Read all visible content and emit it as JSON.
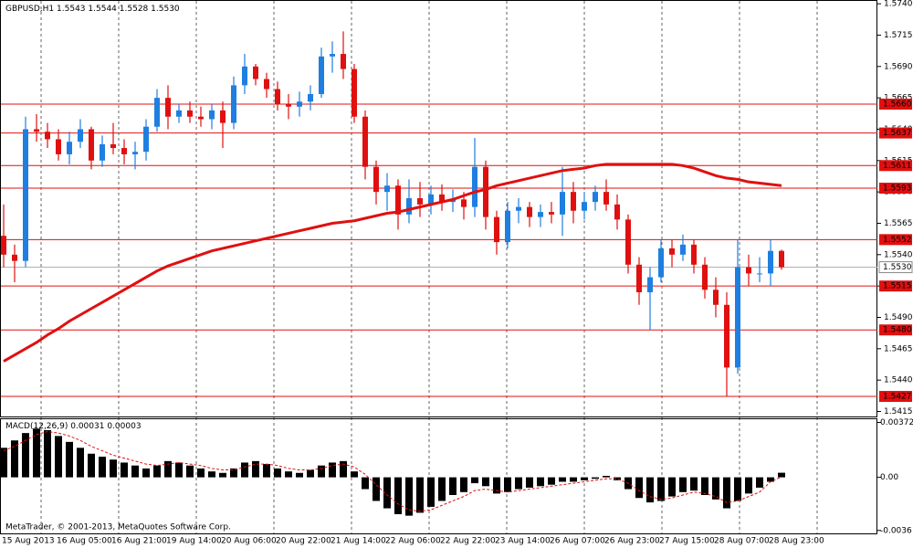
{
  "chart_data": [
    {
      "type": "candlestick",
      "title": "GBPUSD,H1",
      "ohlc_labels": [
        "1.5543",
        "1.5544",
        "1.5528",
        "1.5530"
      ],
      "categories": [
        "15 Aug 2013",
        null,
        null,
        null,
        null,
        "16 Aug 05:00",
        null,
        null,
        null,
        null,
        "16 Aug 21:00",
        null,
        null,
        null,
        null,
        "19 Aug 14:00",
        null,
        null,
        null,
        null,
        "20 Aug 06:00",
        null,
        null,
        null,
        null,
        "20 Aug 22:00",
        null,
        null,
        null,
        null,
        "21 Aug 14:00",
        null,
        null,
        null,
        null,
        "22 Aug 06:00",
        null,
        null,
        null,
        null,
        "22 Aug 22:00",
        null,
        null,
        null,
        null,
        "23 Aug 14:00",
        null,
        null,
        null,
        null,
        "26 Aug 07:00",
        null,
        null,
        null,
        null,
        "26 Aug 23:00",
        null,
        null,
        null,
        null,
        "27 Aug 15:00",
        null,
        null,
        null,
        null,
        "28 Aug 07:00",
        null,
        null,
        null,
        null,
        "28 Aug 23:00",
        null
      ],
      "open": [
        1.5555,
        1.554,
        1.5535,
        1.564,
        1.5638,
        1.5632,
        1.562,
        1.563,
        1.564,
        1.5615,
        1.5628,
        1.5625,
        1.562,
        1.5622,
        1.5642,
        1.5665,
        1.565,
        1.5655,
        1.565,
        1.5648,
        1.5655,
        1.5645,
        1.5675,
        1.569,
        1.568,
        1.5672,
        1.566,
        1.5658,
        1.5662,
        1.5668,
        1.5698,
        1.57,
        1.5688,
        1.565,
        1.561,
        1.559,
        1.5595,
        1.5572,
        1.5585,
        1.558,
        1.5588,
        1.5582,
        1.5584,
        1.5578,
        1.561,
        1.557,
        1.555,
        1.5575,
        1.5578,
        1.557,
        1.5574,
        1.5572,
        1.559,
        1.5575,
        1.5582,
        1.559,
        1.558,
        1.5568,
        1.5532,
        1.551,
        1.5522,
        1.5545,
        1.554,
        1.5548,
        1.5532,
        1.5512,
        1.55,
        1.545,
        1.553,
        1.5525,
        1.5525,
        1.5543
      ],
      "high": [
        1.558,
        1.5548,
        1.565,
        1.5652,
        1.5645,
        1.564,
        1.5638,
        1.5648,
        1.5642,
        1.5635,
        1.5645,
        1.5632,
        1.563,
        1.5648,
        1.5672,
        1.5675,
        1.566,
        1.5662,
        1.5658,
        1.566,
        1.5662,
        1.5682,
        1.57,
        1.5692,
        1.5685,
        1.5678,
        1.5668,
        1.567,
        1.5675,
        1.5705,
        1.571,
        1.5718,
        1.5692,
        1.5655,
        1.5615,
        1.5605,
        1.56,
        1.56,
        1.5598,
        1.5595,
        1.5596,
        1.5592,
        1.559,
        1.5633,
        1.5615,
        1.5575,
        1.5582,
        1.5585,
        1.5582,
        1.558,
        1.5582,
        1.561,
        1.5598,
        1.559,
        1.5595,
        1.56,
        1.5588,
        1.5572,
        1.5538,
        1.553,
        1.5552,
        1.5552,
        1.5556,
        1.5552,
        1.5538,
        1.5522,
        1.551,
        1.5552,
        1.554,
        1.5538,
        1.5552,
        1.5544
      ],
      "low": [
        1.553,
        1.5518,
        1.553,
        1.563,
        1.5625,
        1.5615,
        1.5612,
        1.5625,
        1.5608,
        1.561,
        1.562,
        1.5612,
        1.5608,
        1.5615,
        1.5638,
        1.564,
        1.5645,
        1.5645,
        1.5642,
        1.564,
        1.5625,
        1.564,
        1.5668,
        1.5675,
        1.5665,
        1.5655,
        1.5648,
        1.565,
        1.5655,
        1.5665,
        1.5685,
        1.568,
        1.5645,
        1.56,
        1.558,
        1.5575,
        1.556,
        1.5565,
        1.557,
        1.5572,
        1.5575,
        1.5574,
        1.5568,
        1.557,
        1.556,
        1.554,
        1.5545,
        1.5565,
        1.5562,
        1.5562,
        1.5565,
        1.5555,
        1.5565,
        1.5568,
        1.5575,
        1.5575,
        1.556,
        1.5525,
        1.55,
        1.548,
        1.5518,
        1.553,
        1.5535,
        1.5525,
        1.5505,
        1.549,
        1.5427,
        1.5445,
        1.5515,
        1.5518,
        1.5515,
        1.5528
      ],
      "close": [
        1.554,
        1.5535,
        1.564,
        1.5638,
        1.5632,
        1.562,
        1.563,
        1.564,
        1.5615,
        1.5628,
        1.5625,
        1.562,
        1.5622,
        1.5642,
        1.5665,
        1.565,
        1.5655,
        1.565,
        1.5648,
        1.5655,
        1.5645,
        1.5675,
        1.569,
        1.568,
        1.5672,
        1.566,
        1.5658,
        1.5662,
        1.5668,
        1.5698,
        1.57,
        1.5688,
        1.565,
        1.561,
        1.559,
        1.5595,
        1.5572,
        1.5585,
        1.558,
        1.5588,
        1.5582,
        1.5584,
        1.5578,
        1.561,
        1.557,
        1.555,
        1.5575,
        1.5578,
        1.557,
        1.5574,
        1.5572,
        1.559,
        1.5575,
        1.5582,
        1.559,
        1.558,
        1.5568,
        1.5532,
        1.551,
        1.5522,
        1.5545,
        1.554,
        1.5548,
        1.5532,
        1.5512,
        1.55,
        1.545,
        1.553,
        1.5525,
        1.5525,
        1.5543,
        1.553
      ],
      "up_color": "#1e7fe0",
      "down_color": "#e01010",
      "ma": {
        "color": "#e01010",
        "values": [
          1.5455,
          1.546,
          1.5465,
          1.547,
          1.5476,
          1.5481,
          1.5487,
          1.5492,
          1.5497,
          1.5502,
          1.5507,
          1.5512,
          1.5517,
          1.5522,
          1.5527,
          1.5531,
          1.5534,
          1.5537,
          1.554,
          1.5543,
          1.5545,
          1.5547,
          1.5549,
          1.5551,
          1.5553,
          1.5555,
          1.5557,
          1.5559,
          1.5561,
          1.5563,
          1.5565,
          1.5566,
          1.5567,
          1.5569,
          1.5571,
          1.5573,
          1.5574,
          1.5576,
          1.5578,
          1.558,
          1.5582,
          1.5584,
          1.5587,
          1.559,
          1.5592,
          1.5595,
          1.5597,
          1.5599,
          1.5601,
          1.5603,
          1.5605,
          1.5607,
          1.5608,
          1.5609,
          1.5611,
          1.5612,
          1.5612,
          1.5612,
          1.5612,
          1.5612,
          1.5612,
          1.5612,
          1.5611,
          1.5609,
          1.5606,
          1.5603,
          1.5601,
          1.56,
          1.5598,
          1.5597,
          1.5596,
          1.5595
        ]
      },
      "levels": [
        {
          "value": 1.566,
          "label": "1.5660"
        },
        {
          "value": 1.5637,
          "label": "1.5637"
        },
        {
          "value": 1.5611,
          "label": "1.5611"
        },
        {
          "value": 1.5593,
          "label": "1.5593"
        },
        {
          "value": 1.5552,
          "label": "1.5552"
        },
        {
          "value": 1.5515,
          "label": "1.5515"
        },
        {
          "value": 1.548,
          "label": "1.5480"
        },
        {
          "value": 1.5427,
          "label": "1.5427"
        }
      ],
      "level_color": "#e01010",
      "current_price": {
        "value": 1.553,
        "label": "1.5530"
      },
      "ylim": [
        1.5411,
        1.5743
      ],
      "yticks": [
        {
          "value": 1.574,
          "label": "1.5740"
        },
        {
          "value": 1.5715,
          "label": "1.5715"
        },
        {
          "value": 1.569,
          "label": "1.5690"
        },
        {
          "value": 1.5665,
          "label": "1.5665"
        },
        {
          "value": 1.564,
          "label": "1.5640"
        },
        {
          "value": 1.5615,
          "label": "1.5615"
        },
        {
          "value": 1.559,
          "label": "1.5590"
        },
        {
          "value": 1.5565,
          "label": "1.5565"
        },
        {
          "value": 1.554,
          "label": "1.5540"
        },
        {
          "value": 1.5515,
          "label": "1.5515"
        },
        {
          "value": 1.549,
          "label": "1.5490"
        },
        {
          "value": 1.5465,
          "label": "1.5465"
        },
        {
          "value": 1.544,
          "label": "1.5440"
        },
        {
          "value": 1.5415,
          "label": "1.5415"
        }
      ]
    },
    {
      "type": "macd",
      "title": "MACD(12,26,9)",
      "histogram": {
        "color": "#000000",
        "values": [
          0.002,
          0.0025,
          0.003,
          0.0033,
          0.0032,
          0.0028,
          0.0024,
          0.002,
          0.0016,
          0.0014,
          0.0012,
          0.001,
          0.0008,
          0.0006,
          0.0008,
          0.0011,
          0.001,
          0.0008,
          0.0006,
          0.0004,
          0.0003,
          0.0006,
          0.001,
          0.0011,
          0.0009,
          0.0006,
          0.0004,
          0.0003,
          0.0005,
          0.0008,
          0.001,
          0.0011,
          0.0004,
          -0.0008,
          -0.0016,
          -0.0021,
          -0.0025,
          -0.0026,
          -0.0024,
          -0.002,
          -0.0016,
          -0.0012,
          -0.001,
          -0.0004,
          -0.0006,
          -0.0011,
          -0.001,
          -0.0008,
          -0.0007,
          -0.0006,
          -0.0005,
          -0.0003,
          -0.0003,
          -0.0002,
          -0.0001,
          0.0001,
          -0.0002,
          -0.0008,
          -0.0014,
          -0.0017,
          -0.0016,
          -0.0013,
          -0.001,
          -0.0009,
          -0.0012,
          -0.0015,
          -0.0021,
          -0.0016,
          -0.0011,
          -0.0007,
          -0.0003,
          0.00031
        ]
      },
      "signal": {
        "color": "#e01010",
        "values": [
          0.0018,
          0.0021,
          0.0025,
          0.0029,
          0.0031,
          0.003,
          0.0028,
          0.0025,
          0.0021,
          0.0018,
          0.0015,
          0.0013,
          0.0011,
          0.0009,
          0.0008,
          0.0009,
          0.001,
          0.0009,
          0.0008,
          0.0006,
          0.0005,
          0.0005,
          0.0007,
          0.0009,
          0.0009,
          0.0008,
          0.0006,
          0.0005,
          0.0005,
          0.0006,
          0.0008,
          0.0009,
          0.0007,
          0.0002,
          -0.0005,
          -0.0012,
          -0.0018,
          -0.0022,
          -0.0023,
          -0.0022,
          -0.0019,
          -0.0016,
          -0.0013,
          -0.0009,
          -0.0008,
          -0.0009,
          -0.001,
          -0.0009,
          -0.0008,
          -0.0007,
          -0.0006,
          -0.0005,
          -0.0004,
          -0.0003,
          -0.0002,
          -0.0001,
          -0.0001,
          -0.0004,
          -0.0009,
          -0.0013,
          -0.0015,
          -0.0014,
          -0.0012,
          -0.001,
          -0.0011,
          -0.0013,
          -0.0017,
          -0.0016,
          -0.0013,
          -0.001,
          -0.0003,
          3e-05
        ]
      },
      "ylim": [
        -0.0038,
        0.004
      ],
      "yticks": [
        {
          "value": 0.00372,
          "label": "0.00372"
        },
        {
          "value": 0,
          "label": "0.00"
        },
        {
          "value": -0.0036,
          "label": "-0.0036"
        }
      ]
    }
  ],
  "footer": "MetaTrader, © 2001-2013, MetaQuotes Software Corp."
}
